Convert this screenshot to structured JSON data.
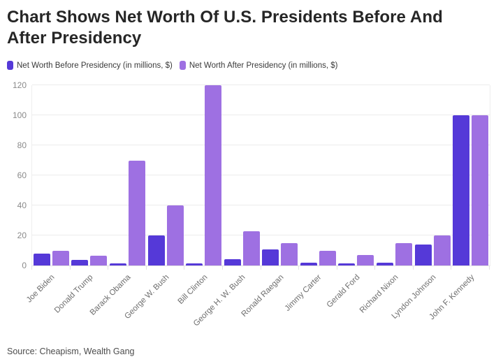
{
  "header": {
    "title": "Chart Shows Net Worth Of U.S. Presidents Before And After Presidency",
    "title_lines": [
      "Chart Shows Net Worth Of U.S. Presidents Before And",
      "After Presidency"
    ]
  },
  "legend": {
    "items": [
      {
        "label": "Net Worth Before Presidency (in millions, $)",
        "color": "#5539d8"
      },
      {
        "label": "Net Worth After Presidency (in millions, $)",
        "color": "#9e70e2"
      }
    ]
  },
  "chart_data": {
    "type": "bar",
    "title": "Chart Shows Net Worth Of U.S. Presidents Before And After Presidency",
    "categories": [
      "Joe Biden",
      "Donald Trump",
      "Barack Obama",
      "George W. Bush",
      "Bill Clinton",
      "George H. W. Bush",
      "Ronald Raegan",
      "Jimmy Carter",
      "Gerald Ford",
      "Richard Nixon",
      "Lyndon Johnson",
      "John F. Kennedy"
    ],
    "series": [
      {
        "name": "Net Worth Before Presidency (in millions, $)",
        "color": "#5539d8",
        "values": [
          8,
          3.5,
          1.3,
          20,
          1.3,
          4,
          10.5,
          2,
          1.3,
          2,
          14,
          100
        ]
      },
      {
        "name": "Net Worth After Presidency (in millions, $)",
        "color": "#9e70e2",
        "values": [
          10,
          6.5,
          70,
          40,
          120,
          23,
          15,
          10,
          7,
          15,
          20,
          100
        ]
      }
    ],
    "xlabel": "",
    "ylabel": "",
    "ylim": [
      0,
      120
    ],
    "yticks": [
      0,
      20,
      40,
      60,
      80,
      100,
      120
    ],
    "grid": true,
    "legend_position": "top"
  },
  "footer": {
    "source": "Source: Cheapism, Wealth Gang"
  }
}
